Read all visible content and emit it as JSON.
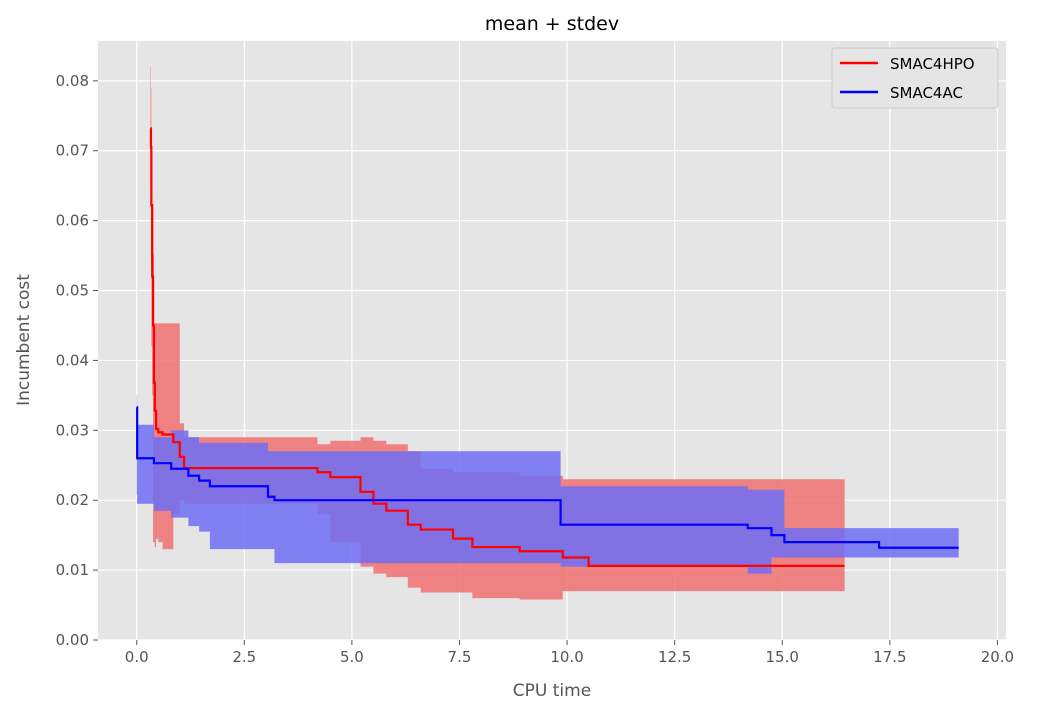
{
  "chart_data": {
    "type": "line",
    "title": "mean + stdev",
    "xlabel": "CPU time",
    "ylabel": "Incumbent cost",
    "xlim": [
      -0.9,
      20.2
    ],
    "ylim": [
      0.0,
      0.0857
    ],
    "x_ticks": [
      "0.0",
      "2.5",
      "5.0",
      "7.5",
      "10.0",
      "12.5",
      "15.0",
      "17.5",
      "20.0"
    ],
    "y_ticks": [
      "0.00",
      "0.01",
      "0.02",
      "0.03",
      "0.04",
      "0.05",
      "0.06",
      "0.07",
      "0.08"
    ],
    "x_tick_values": [
      0,
      2.5,
      5,
      7.5,
      10,
      12.5,
      15,
      17.5,
      20
    ],
    "y_tick_values": [
      0,
      0.01,
      0.02,
      0.03,
      0.04,
      0.05,
      0.06,
      0.07,
      0.08
    ],
    "grid": true,
    "legend_position": "top-right",
    "background_color": "#e5e5e5",
    "grid_color": "#ffffff",
    "series": [
      {
        "name": "SMAC4HPO",
        "color": "#ff0000",
        "band_color": "#f07070",
        "x": [
          0.32,
          0.33,
          0.34,
          0.36,
          0.38,
          0.4,
          0.42,
          0.45,
          0.5,
          0.6,
          0.85,
          1.0,
          1.1,
          4.2,
          4.5,
          5.2,
          5.5,
          5.8,
          6.3,
          6.6,
          7.35,
          7.8,
          8.9,
          9.9,
          10.5,
          16.45
        ],
        "y": [
          0.0732,
          0.0705,
          0.0622,
          0.052,
          0.045,
          0.0368,
          0.0328,
          0.0302,
          0.0297,
          0.0294,
          0.0283,
          0.0262,
          0.0246,
          0.024,
          0.0233,
          0.0212,
          0.0195,
          0.0185,
          0.0165,
          0.0158,
          0.0145,
          0.0133,
          0.0127,
          0.0118,
          0.0106,
          0.0106
        ],
        "upper": [
          0.082,
          0.079,
          0.07,
          0.062,
          0.0553,
          0.0453,
          0.0453,
          0.0453,
          0.0453,
          0.0453,
          0.0453,
          0.031,
          0.029,
          0.028,
          0.0285,
          0.029,
          0.0285,
          0.028,
          0.027,
          0.0245,
          0.024,
          0.024,
          0.0235,
          0.023,
          0.023,
          0.023
        ],
        "lower": [
          0.064,
          0.062,
          0.054,
          0.042,
          0.035,
          0.014,
          0.014,
          0.0133,
          0.0145,
          0.014,
          0.013,
          0.018,
          0.02,
          0.0195,
          0.018,
          0.014,
          0.0105,
          0.0095,
          0.009,
          0.0075,
          0.0068,
          0.0068,
          0.006,
          0.0058,
          0.007,
          0.007
        ]
      },
      {
        "name": "SMAC4AC",
        "color": "#0000ff",
        "band_color": "#6f6ff5",
        "x": [
          0.0,
          0.01,
          0.4,
          0.8,
          1.2,
          1.45,
          1.7,
          3.05,
          3.2,
          9.85,
          14.2,
          14.75,
          15.05,
          17.25,
          19.1
        ],
        "y": [
          0.0333,
          0.026,
          0.0253,
          0.0245,
          0.0235,
          0.0228,
          0.022,
          0.0205,
          0.02,
          0.0165,
          0.016,
          0.015,
          0.014,
          0.0132,
          0.0132
        ],
        "upper": [
          0.035,
          0.0308,
          0.029,
          0.03,
          0.029,
          0.0282,
          0.0282,
          0.027,
          0.027,
          0.022,
          0.0215,
          0.0215,
          0.016,
          0.016,
          0.016
        ],
        "lower": [
          0.031,
          0.0208,
          0.0195,
          0.0185,
          0.0175,
          0.0163,
          0.0155,
          0.013,
          0.013,
          0.011,
          0.0105,
          0.0095,
          0.0118,
          0.0118,
          0.0118
        ]
      }
    ]
  }
}
